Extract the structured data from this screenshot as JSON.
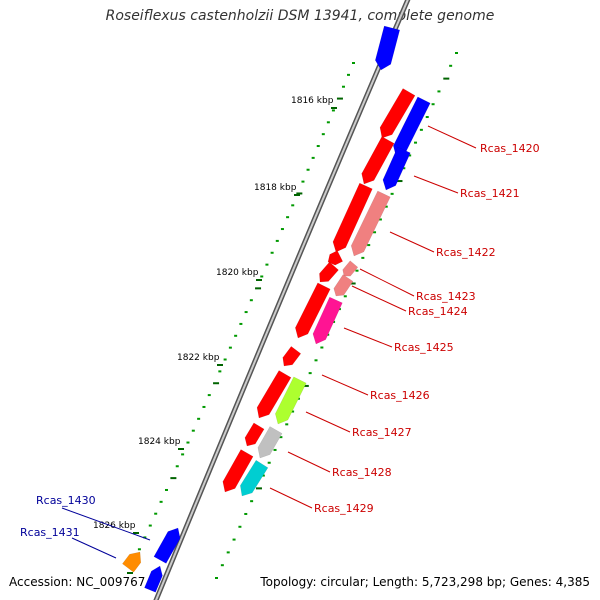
{
  "title": "Roseiflexus castenholzii DSM 13941, complete genome",
  "accession": "Accession: NC_009767",
  "topology": "Topology: circular; Length: 5,723,298 bp; Genes: 4,385",
  "colors": {
    "backbone": "#777777",
    "forward_strand": "#0000ff",
    "reverse_strand": "#ff0000",
    "tick_major": "#006400",
    "tick_minor": "#009900",
    "reverse_label": "#cc0000",
    "forward_label": "#000099"
  },
  "ruler": [
    {
      "kbp": 1816,
      "label": "1816 kbp"
    },
    {
      "kbp": 1818,
      "label": "1818 kbp"
    },
    {
      "kbp": 1820,
      "label": "1820 kbp"
    },
    {
      "kbp": 1822,
      "label": "1822 kbp"
    },
    {
      "kbp": 1824,
      "label": "1824 kbp"
    },
    {
      "kbp": 1826,
      "label": "1826 kbp"
    }
  ],
  "genes": [
    {
      "label": "Rcas_1420",
      "strand": "reverse",
      "color": "#0000ff"
    },
    {
      "label": "Rcas_1421",
      "strand": "reverse",
      "color": "#0000ff"
    },
    {
      "label": "Rcas_1422",
      "strand": "reverse",
      "color": "#f08080"
    },
    {
      "label": "Rcas_1423",
      "strand": "reverse",
      "color": "#f08080"
    },
    {
      "label": "Rcas_1424",
      "strand": "reverse",
      "color": "#f08080"
    },
    {
      "label": "Rcas_1425",
      "strand": "reverse",
      "color": "#ff1493"
    },
    {
      "label": "Rcas_1426",
      "strand": "reverse",
      "color": "#ff0000"
    },
    {
      "label": "Rcas_1427",
      "strand": "reverse",
      "color": "#adff2f"
    },
    {
      "label": "Rcas_1428",
      "strand": "reverse",
      "color": "#c0c0c0"
    },
    {
      "label": "Rcas_1429",
      "strand": "reverse",
      "color": "#00ced1"
    },
    {
      "label": "Rcas_1430",
      "strand": "forward",
      "color": "#0000ff"
    },
    {
      "label": "Rcas_1431",
      "strand": "forward",
      "color": "#ff8c00"
    }
  ]
}
